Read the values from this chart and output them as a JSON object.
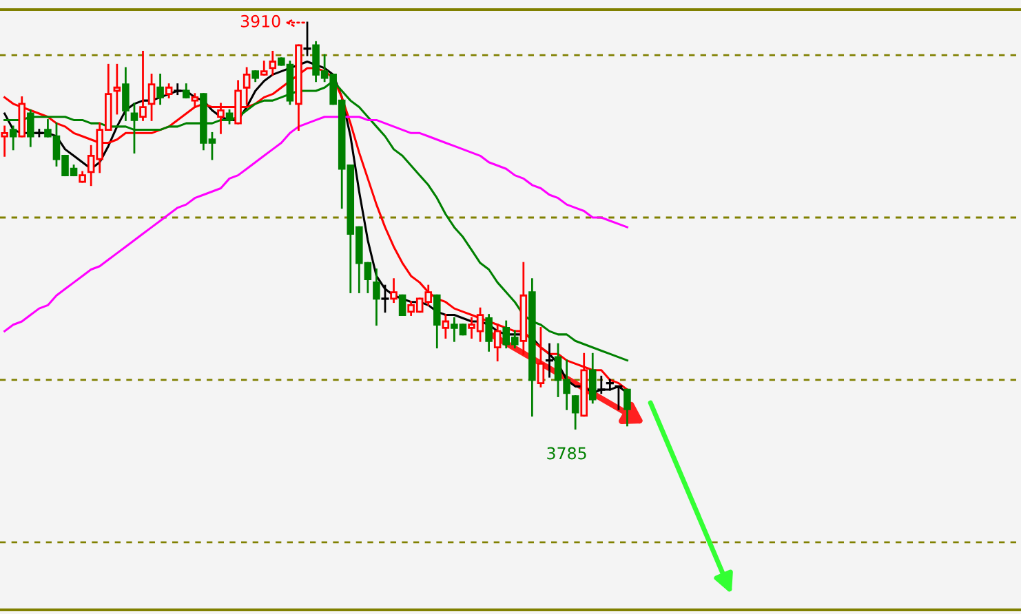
{
  "chart_data": {
    "type": "candlestick",
    "categories": [
      null,
      null,
      null,
      null,
      null,
      null,
      null,
      null,
      null,
      null,
      null,
      null,
      null,
      null,
      null,
      null,
      null,
      null,
      null,
      null,
      null,
      null,
      null,
      null,
      null,
      null,
      null,
      null,
      null,
      null,
      null,
      null,
      null,
      null,
      null,
      null,
      null,
      null,
      null,
      null,
      null,
      null,
      null,
      null,
      null,
      null,
      null,
      null,
      null,
      null,
      null,
      null,
      null,
      null,
      null,
      null,
      null,
      null,
      null,
      null,
      null,
      null,
      null,
      null,
      null,
      null,
      null,
      null,
      null,
      null,
      null,
      null,
      null,
      null,
      null,
      null,
      null,
      null,
      null,
      null,
      null,
      null,
      null,
      null,
      null,
      null,
      null,
      null,
      null,
      null,
      null,
      null,
      null,
      null,
      null,
      null,
      null,
      null,
      null,
      null,
      null,
      null,
      null,
      null,
      null,
      null,
      null,
      null,
      null,
      null,
      null,
      null,
      null,
      null,
      null,
      null,
      null,
      null
    ],
    "ohlc": [
      [
        3875,
        3878,
        3869,
        3876
      ],
      [
        3877,
        3878,
        3871,
        3875
      ],
      [
        3875,
        3887,
        3875,
        3885
      ],
      [
        3882,
        3883,
        3872,
        3875
      ],
      [
        3876,
        3877,
        3875,
        3876
      ],
      [
        3877,
        3880,
        3875,
        3875
      ],
      [
        3875,
        3879,
        3866,
        3868
      ],
      [
        3869,
        3869,
        3863,
        3863
      ],
      [
        3865,
        3866,
        3863,
        3863
      ],
      [
        3861,
        3864,
        3861,
        3863
      ],
      [
        3864,
        3872,
        3860,
        3869
      ],
      [
        3868,
        3879,
        3864,
        3877
      ],
      [
        3877,
        3897,
        3877,
        3888
      ],
      [
        3889,
        3897,
        3882,
        3890
      ],
      [
        3891,
        3896,
        3880,
        3883
      ],
      [
        3882,
        3885,
        3870,
        3880
      ],
      [
        3881,
        3901,
        3880,
        3884
      ],
      [
        3885,
        3894,
        3880,
        3891
      ],
      [
        3890,
        3894,
        3885,
        3887
      ],
      [
        3888,
        3891,
        3887,
        3890
      ],
      [
        3889,
        3891,
        3888,
        3889
      ],
      [
        3889,
        3891,
        3887,
        3887
      ],
      [
        3886,
        3888,
        3884,
        3887
      ],
      [
        3888,
        3888,
        3871,
        3873
      ],
      [
        3874,
        3876,
        3868,
        3873
      ],
      [
        3881,
        3885,
        3876,
        3883
      ],
      [
        3882,
        3883,
        3879,
        3880
      ],
      [
        3879,
        3892,
        3879,
        3889
      ],
      [
        3890,
        3896,
        3885,
        3894
      ],
      [
        3895,
        3895,
        3892,
        3893
      ],
      [
        3894,
        3898,
        3894,
        3895
      ],
      [
        3896,
        3901,
        3894,
        3898
      ],
      [
        3899,
        3899,
        3897,
        3897
      ],
      [
        3897,
        3898,
        3885,
        3886
      ],
      [
        3885,
        3903,
        3877,
        3903
      ],
      [
        3902,
        3910,
        3900,
        3902
      ],
      [
        3903,
        3904,
        3892,
        3894
      ],
      [
        3895,
        3900,
        3892,
        3893
      ],
      [
        3894,
        3894,
        3885,
        3885
      ],
      [
        3886,
        3886,
        3853,
        3865
      ],
      [
        3866,
        3866,
        3827,
        3845
      ],
      [
        3847,
        3847,
        3827,
        3836
      ],
      [
        3836,
        3836,
        3827,
        3831
      ],
      [
        3830,
        3834,
        3817,
        3825
      ],
      [
        3825,
        3829,
        3821,
        3825
      ],
      [
        3825,
        3831,
        3824,
        3827
      ],
      [
        3826,
        3826,
        3820,
        3820
      ],
      [
        3821,
        3824,
        3820,
        3823
      ],
      [
        3821,
        3825,
        3821,
        3825
      ],
      [
        3824,
        3829,
        3823,
        3827
      ],
      [
        3826,
        3826,
        3810,
        3817
      ],
      [
        3816,
        3820,
        3813,
        3818
      ],
      [
        3817,
        3819,
        3812,
        3816
      ],
      [
        3817,
        3817,
        3814,
        3814
      ],
      [
        3816,
        3819,
        3813,
        3817
      ],
      [
        3815,
        3822,
        3812,
        3820
      ],
      [
        3819,
        3820,
        3809,
        3812
      ],
      [
        3810,
        3817,
        3806,
        3815
      ],
      [
        3816,
        3818,
        3810,
        3811
      ],
      [
        3813,
        3815,
        3810,
        3811
      ],
      [
        3812,
        3836,
        3808,
        3826
      ],
      [
        3827,
        3831,
        3789,
        3800
      ],
      [
        3799,
        3816,
        3798,
        3805
      ],
      [
        3806,
        3811,
        3801,
        3806
      ],
      [
        3807,
        3811,
        3795,
        3800
      ],
      [
        3800,
        3806,
        3791,
        3796
      ],
      [
        3795,
        3795,
        3785,
        3790
      ],
      [
        3789,
        3808,
        3789,
        3803
      ],
      [
        3803,
        3808,
        3793,
        3794
      ],
      [
        3797,
        3801,
        3796,
        3797
      ],
      [
        3799,
        3800,
        3797,
        3799
      ],
      [
        3798,
        3798,
        3791,
        3798
      ],
      [
        3797,
        3797,
        3786,
        3791
      ],
      null,
      null,
      null,
      null,
      null,
      null,
      null,
      null,
      null,
      null,
      null,
      null,
      null,
      null,
      null,
      null,
      null,
      null,
      null,
      null,
      null,
      null,
      null,
      null,
      null,
      null,
      null,
      null,
      null,
      null,
      null,
      null,
      null,
      null,
      null,
      null,
      null,
      null,
      null,
      null,
      null,
      null,
      null,
      null,
      null
    ],
    "colors": [
      "#ff0000",
      "#008000",
      "#ff0000",
      "#008000",
      "#000000",
      "#008000",
      "#008000",
      "#008000",
      "#008000",
      "#ff0000",
      "#ff0000",
      "#ff0000",
      "#ff0000",
      "#ff0000",
      "#008000",
      "#008000",
      "#ff0000",
      "#ff0000",
      "#008000",
      "#ff0000",
      "#000000",
      "#008000",
      "#ff0000",
      "#008000",
      "#008000",
      "#ff0000",
      "#008000",
      "#ff0000",
      "#ff0000",
      "#008000",
      "#ff0000",
      "#ff0000",
      "#008000",
      "#008000",
      "#ff0000",
      "#000000",
      "#008000",
      "#008000",
      "#008000",
      "#008000",
      "#008000",
      "#008000",
      "#008000",
      "#008000",
      "#000000",
      "#ff0000",
      "#008000",
      "#ff0000",
      "#ff0000",
      "#ff0000",
      "#008000",
      "#ff0000",
      "#008000",
      "#008000",
      "#ff0000",
      "#ff0000",
      "#008000",
      "#ff0000",
      "#008000",
      "#008000",
      "#ff0000",
      "#008000",
      "#ff0000",
      "#000000",
      "#008000",
      "#008000",
      "#008000",
      "#ff0000",
      "#008000",
      "#000000",
      "#000000",
      "#000000",
      "#008000",
      null,
      null,
      null,
      null,
      null,
      null,
      null,
      null,
      null,
      null,
      null,
      null,
      null,
      null,
      null,
      null,
      null,
      null,
      null,
      null,
      null,
      null,
      null,
      null,
      null,
      null,
      null,
      null,
      null,
      null,
      null,
      null,
      null,
      null,
      null,
      null,
      null,
      null,
      null,
      null,
      null,
      null,
      null,
      null,
      null
    ],
    "series": [
      {
        "type": "line",
        "color": "#000000",
        "values": [
          3882,
          3877,
          3876,
          3876,
          3876,
          3876,
          3875,
          3871,
          3869,
          3867,
          3865,
          3867,
          3872,
          3878,
          3883,
          3885,
          3886,
          3886,
          3887,
          3888,
          3889,
          3889,
          3887,
          3886,
          3883,
          3881,
          3880,
          3880,
          3884,
          3889,
          3892,
          3894,
          3895,
          3896,
          3897,
          3898,
          3897,
          3896,
          3894,
          3887,
          3875,
          3858,
          3843,
          3832,
          3828,
          3826,
          3825,
          3824,
          3824,
          3823,
          3821,
          3820,
          3820,
          3819,
          3818,
          3818,
          3817,
          3815,
          3814,
          3814,
          3814,
          3813,
          3810,
          3808,
          3805,
          3800,
          3798,
          3798,
          3796,
          3797,
          3797,
          3798,
          3796,
          null,
          null,
          null,
          null,
          null,
          null,
          null,
          null,
          null,
          null,
          null,
          null,
          null,
          null,
          null,
          null,
          null,
          null,
          null,
          null,
          null,
          null,
          null,
          null,
          null,
          null,
          null,
          null,
          null,
          null,
          null,
          null,
          null,
          null,
          null,
          null,
          null,
          null,
          null,
          null,
          null,
          null,
          null,
          null,
          null
        ]
      },
      {
        "type": "line",
        "color": "#ff0000",
        "values": [
          3887,
          3885,
          3884,
          3883,
          3882,
          3881,
          3879,
          3878,
          3876,
          3875,
          3874,
          3873,
          3873,
          3874,
          3876,
          3876,
          3876,
          3876,
          3877,
          3878,
          3880,
          3882,
          3884,
          3885,
          3884,
          3884,
          3884,
          3884,
          3884,
          3885,
          3887,
          3888,
          3890,
          3892,
          3894,
          3896,
          3896,
          3895,
          3893,
          3887,
          3879,
          3870,
          3862,
          3854,
          3847,
          3841,
          3836,
          3832,
          3830,
          3827,
          3825,
          3824,
          3822,
          3821,
          3820,
          3819,
          3818,
          3817,
          3816,
          3815,
          3815,
          3812,
          3810,
          3808,
          3808,
          3806,
          3805,
          3804,
          3803,
          3803,
          3800,
          3799,
          3797,
          null,
          null,
          null,
          null,
          null,
          null,
          null,
          null,
          null,
          null,
          null,
          null,
          null,
          null,
          null,
          null,
          null,
          null,
          null,
          null,
          null,
          null,
          null,
          null,
          null,
          null,
          null,
          null,
          null,
          null,
          null,
          null,
          null,
          null,
          null,
          null,
          null,
          null,
          null,
          null,
          null,
          null,
          null,
          null,
          null
        ]
      },
      {
        "type": "line",
        "color": "#008000",
        "values": [
          3880,
          3880,
          3880,
          3881,
          3881,
          3881,
          3881,
          3881,
          3880,
          3880,
          3879,
          3879,
          3878,
          3878,
          3878,
          3877,
          3877,
          3877,
          3877,
          3878,
          3878,
          3879,
          3879,
          3879,
          3879,
          3880,
          3880,
          3881,
          3883,
          3885,
          3886,
          3886,
          3887,
          3888,
          3889,
          3889,
          3889,
          3890,
          3892,
          3889,
          3886,
          3884,
          3881,
          3878,
          3875,
          3871,
          3869,
          3866,
          3863,
          3860,
          3856,
          3851,
          3847,
          3844,
          3840,
          3836,
          3834,
          3830,
          3827,
          3824,
          3820,
          3818,
          3817,
          3815,
          3814,
          3814,
          3812,
          3811,
          3810,
          3809,
          3808,
          3807,
          3806,
          null,
          null,
          null,
          null,
          null,
          null,
          null,
          null,
          null,
          null,
          null,
          null,
          null,
          null,
          null,
          null,
          null,
          null,
          null,
          null,
          null,
          null,
          null,
          null,
          null,
          null,
          null,
          null,
          null,
          null,
          null,
          null,
          null,
          null,
          null,
          null,
          null,
          null,
          null,
          null,
          null,
          null,
          null,
          null,
          null
        ]
      },
      {
        "type": "line",
        "color": "#ff00ff",
        "values": [
          3815,
          3817,
          3818,
          3820,
          3822,
          3823,
          3826,
          3828,
          3830,
          3832,
          3834,
          3835,
          3837,
          3839,
          3841,
          3843,
          3845,
          3847,
          3849,
          3851,
          3853,
          3854,
          3856,
          3857,
          3858,
          3859,
          3862,
          3863,
          3865,
          3867,
          3869,
          3871,
          3873,
          3876,
          3878,
          3879,
          3880,
          3881,
          3881,
          3881,
          3881,
          3881,
          3880,
          3880,
          3879,
          3878,
          3877,
          3876,
          3876,
          3875,
          3874,
          3873,
          3872,
          3871,
          3870,
          3869,
          3867,
          3866,
          3865,
          3863,
          3862,
          3860,
          3859,
          3857,
          3856,
          3854,
          3853,
          3852,
          3850,
          3850,
          3849,
          3848,
          3847,
          null,
          null,
          null,
          null,
          null,
          null,
          null,
          null,
          null,
          null,
          null,
          null,
          null,
          null,
          null,
          null,
          null,
          null,
          null,
          null,
          null,
          null,
          null,
          null,
          null,
          null,
          null,
          null,
          null,
          null,
          null,
          null,
          null,
          null,
          null,
          null,
          null,
          null,
          null,
          null,
          null,
          null,
          null,
          null,
          null
        ]
      }
    ],
    "ref_lines": [
      {
        "axis": "y",
        "value": 3900,
        "color": "#808000",
        "line_style": "dashed"
      },
      {
        "axis": "y",
        "value": 3850,
        "color": "#808000",
        "line_style": "dashed"
      },
      {
        "axis": "y",
        "value": 3800,
        "color": "#808000",
        "line_style": "dashed"
      },
      {
        "axis": "y",
        "value": 3750,
        "color": "#808000",
        "line_style": "dashed"
      }
    ],
    "annotations": [
      "3910",
      "3785"
    ]
  }
}
